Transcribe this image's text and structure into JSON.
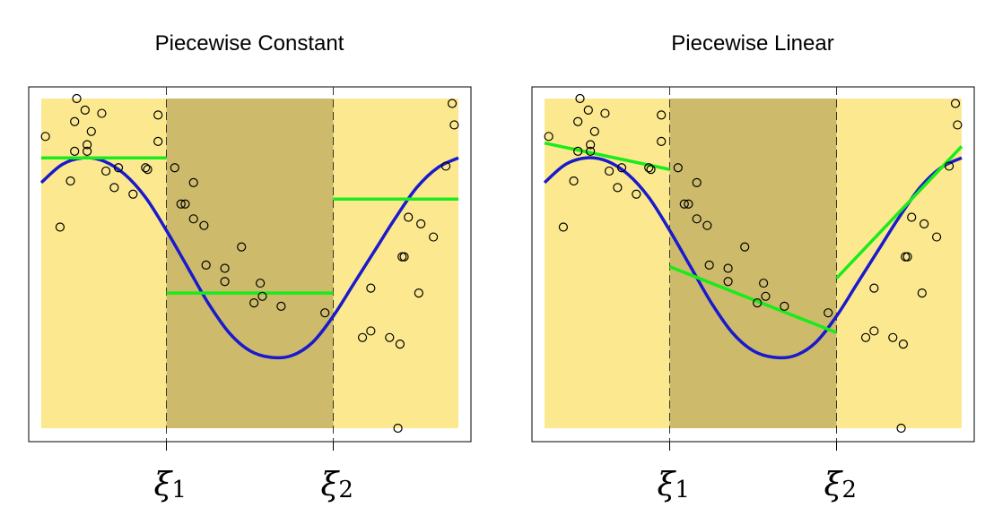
{
  "colors": {
    "background_outer": "#fce98f",
    "background_middle": "#cdbb6b",
    "true_curve": "#1a1acd",
    "fit_line": "#1aeb1a",
    "points": "#000000",
    "frame": "#000000",
    "knot_line": "#333333"
  },
  "chart_data": [
    {
      "type": "scatter",
      "title": "Piecewise Constant",
      "knots": [
        {
          "x": 0.3,
          "label": "ξ",
          "sub": "1"
        },
        {
          "x": 0.7,
          "label": "ξ",
          "sub": "2"
        }
      ],
      "xlim": [
        0,
        1
      ],
      "ylim": [
        0,
        1
      ],
      "curve": {
        "x": [
          0.0,
          0.05,
          0.1,
          0.15,
          0.2,
          0.25,
          0.3,
          0.35,
          0.4,
          0.45,
          0.5,
          0.55,
          0.6,
          0.65,
          0.7,
          0.75,
          0.8,
          0.85,
          0.9,
          0.95,
          1.0
        ],
        "y": [
          0.745,
          0.8,
          0.82,
          0.81,
          0.77,
          0.7,
          0.6,
          0.49,
          0.38,
          0.29,
          0.235,
          0.215,
          0.22,
          0.26,
          0.34,
          0.44,
          0.54,
          0.64,
          0.73,
          0.79,
          0.82
        ]
      },
      "fits": [
        {
          "x": [
            0.0,
            0.3
          ],
          "y": [
            0.82,
            0.82
          ]
        },
        {
          "x": [
            0.3,
            0.7
          ],
          "y": [
            0.41,
            0.41
          ]
        },
        {
          "x": [
            0.7,
            1.0
          ],
          "y": [
            0.695,
            0.695
          ]
        }
      ],
      "points": {
        "x": [
          0.01,
          0.045,
          0.07,
          0.08,
          0.08,
          0.085,
          0.105,
          0.11,
          0.11,
          0.12,
          0.145,
          0.155,
          0.175,
          0.185,
          0.22,
          0.25,
          0.255,
          0.28,
          0.28,
          0.32,
          0.335,
          0.345,
          0.365,
          0.365,
          0.39,
          0.395,
          0.44,
          0.44,
          0.48,
          0.51,
          0.525,
          0.53,
          0.575,
          0.68,
          0.77,
          0.79,
          0.79,
          0.835,
          0.855,
          0.86,
          0.865,
          0.87,
          0.88,
          0.905,
          0.91,
          0.94,
          0.97,
          0.985,
          0.99
        ],
        "y": [
          0.885,
          0.61,
          0.75,
          0.84,
          0.93,
          1.0,
          0.965,
          0.84,
          0.86,
          0.9,
          0.955,
          0.78,
          0.73,
          0.79,
          0.71,
          0.79,
          0.785,
          0.95,
          0.87,
          0.79,
          0.68,
          0.68,
          0.745,
          0.635,
          0.615,
          0.495,
          0.485,
          0.445,
          0.55,
          0.38,
          0.44,
          0.4,
          0.37,
          0.35,
          0.275,
          0.425,
          0.295,
          0.275,
          0.0,
          0.255,
          0.52,
          0.52,
          0.64,
          0.41,
          0.62,
          0.58,
          0.795,
          0.985,
          0.92
        ]
      }
    },
    {
      "type": "scatter",
      "title": "Piecewise Linear",
      "knots": [
        {
          "x": 0.3,
          "label": "ξ",
          "sub": "1"
        },
        {
          "x": 0.7,
          "label": "ξ",
          "sub": "2"
        }
      ],
      "xlim": [
        0,
        1
      ],
      "ylim": [
        0,
        1
      ],
      "curve": {
        "x": [
          0.0,
          0.05,
          0.1,
          0.15,
          0.2,
          0.25,
          0.3,
          0.35,
          0.4,
          0.45,
          0.5,
          0.55,
          0.6,
          0.65,
          0.7,
          0.75,
          0.8,
          0.85,
          0.9,
          0.95,
          1.0
        ],
        "y": [
          0.745,
          0.8,
          0.82,
          0.81,
          0.77,
          0.7,
          0.6,
          0.49,
          0.38,
          0.29,
          0.235,
          0.215,
          0.22,
          0.26,
          0.34,
          0.44,
          0.54,
          0.64,
          0.73,
          0.79,
          0.82
        ]
      },
      "fits": [
        {
          "x": [
            0.0,
            0.3
          ],
          "y": [
            0.865,
            0.785
          ]
        },
        {
          "x": [
            0.3,
            0.7
          ],
          "y": [
            0.49,
            0.29
          ]
        },
        {
          "x": [
            0.7,
            1.0
          ],
          "y": [
            0.455,
            0.855
          ]
        }
      ],
      "points": {
        "x": [
          0.01,
          0.045,
          0.07,
          0.08,
          0.08,
          0.085,
          0.105,
          0.11,
          0.11,
          0.12,
          0.145,
          0.155,
          0.175,
          0.185,
          0.22,
          0.25,
          0.255,
          0.28,
          0.28,
          0.32,
          0.335,
          0.345,
          0.365,
          0.365,
          0.39,
          0.395,
          0.44,
          0.44,
          0.48,
          0.51,
          0.525,
          0.53,
          0.575,
          0.68,
          0.77,
          0.79,
          0.79,
          0.835,
          0.855,
          0.86,
          0.865,
          0.87,
          0.88,
          0.905,
          0.91,
          0.94,
          0.97,
          0.985,
          0.99
        ],
        "y": [
          0.885,
          0.61,
          0.75,
          0.84,
          0.93,
          1.0,
          0.965,
          0.84,
          0.86,
          0.9,
          0.955,
          0.78,
          0.73,
          0.79,
          0.71,
          0.79,
          0.785,
          0.95,
          0.87,
          0.79,
          0.68,
          0.68,
          0.745,
          0.635,
          0.615,
          0.495,
          0.485,
          0.445,
          0.55,
          0.38,
          0.44,
          0.4,
          0.37,
          0.35,
          0.275,
          0.425,
          0.295,
          0.275,
          0.0,
          0.255,
          0.52,
          0.52,
          0.64,
          0.41,
          0.62,
          0.58,
          0.795,
          0.985,
          0.92
        ]
      }
    }
  ]
}
